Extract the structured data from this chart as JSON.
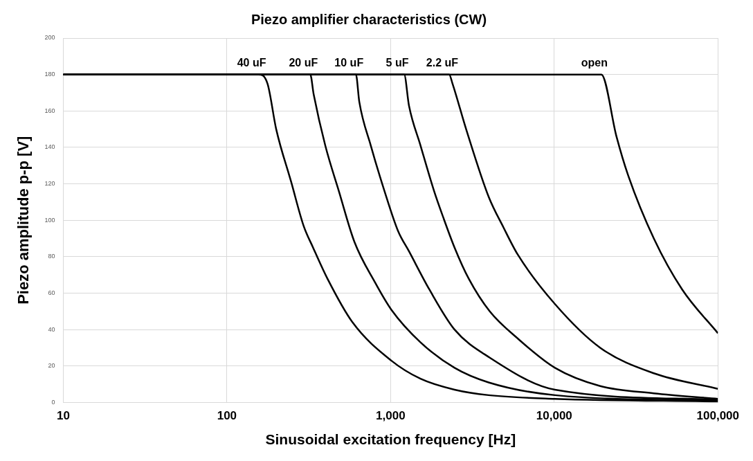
{
  "chart_data": {
    "type": "line",
    "title": "Piezo amplifier characteristics (CW)",
    "xlabel": "Sinusoidal excitation frequency [Hz]",
    "ylabel": "Piezo amplitude p-p [V]",
    "log": "x",
    "xlim": [
      10,
      100000
    ],
    "xticks": [
      {
        "value": 10,
        "label": "10"
      },
      {
        "value": 100,
        "label": "100"
      },
      {
        "value": 1000,
        "label": "1,000"
      },
      {
        "value": 10000,
        "label": "10,000"
      },
      {
        "value": 100000,
        "label": "100,000"
      }
    ],
    "ylim": [
      0,
      200
    ],
    "yticks": [
      0,
      20,
      40,
      60,
      80,
      100,
      120,
      140,
      160,
      180,
      200
    ],
    "grid": true,
    "legend": false,
    "marker": "none",
    "line_style": "solid",
    "series": [
      {
        "name": "40 uF",
        "color": "#000000",
        "x": [
          10,
          156,
          177,
          200,
          247,
          294,
          336,
          411,
          585,
          1009,
          1524,
          2460,
          3970,
          10100,
          100000
        ],
        "values": [
          180,
          180,
          175,
          150,
          121,
          97,
          85,
          68,
          44,
          23,
          13,
          7,
          4,
          2,
          0.5
        ]
      },
      {
        "name": "20 uF",
        "color": "#000000",
        "x": [
          10,
          323,
          339,
          399,
          483,
          602,
          802,
          1009,
          1524,
          2460,
          3970,
          10100,
          100000
        ],
        "values": [
          180,
          180,
          169,
          141,
          116,
          88,
          66,
          51,
          33,
          19,
          11,
          4,
          1
        ]
      },
      {
        "name": "10 uF",
        "color": "#000000",
        "x": [
          10,
          614,
          644,
          757,
          918,
          1112,
          1295,
          1726,
          2460,
          3970,
          10100,
          100000
        ],
        "values": [
          180,
          180,
          165,
          141,
          116,
          94,
          83,
          62,
          40,
          25,
          7,
          1.5
        ]
      },
      {
        "name": "5 uF",
        "color": "#000000",
        "x": [
          10,
          1211,
          1295,
          1524,
          1845,
          2090,
          2460,
          3000,
          4035,
          6000,
          10100,
          19100,
          40600,
          100000
        ],
        "values": [
          180,
          180,
          163,
          141,
          116,
          102,
          85,
          68,
          50,
          35,
          19,
          9,
          5,
          2
        ]
      },
      {
        "name": "2.2 uF",
        "color": "#000000",
        "x": [
          10,
          2280,
          2390,
          2895,
          3970,
          4900,
          6000,
          10100,
          19100,
          40600,
          100000
        ],
        "values": [
          180,
          180,
          175,
          150,
          113,
          96,
          81,
          54,
          30,
          16,
          7.5
        ]
      },
      {
        "name": "open",
        "color": "#000000",
        "x": [
          10,
          19400,
          24000,
          28200,
          40600,
          60500,
          100000
        ],
        "values": [
          180,
          180,
          146,
          125,
          90,
          62,
          38
        ]
      }
    ]
  }
}
